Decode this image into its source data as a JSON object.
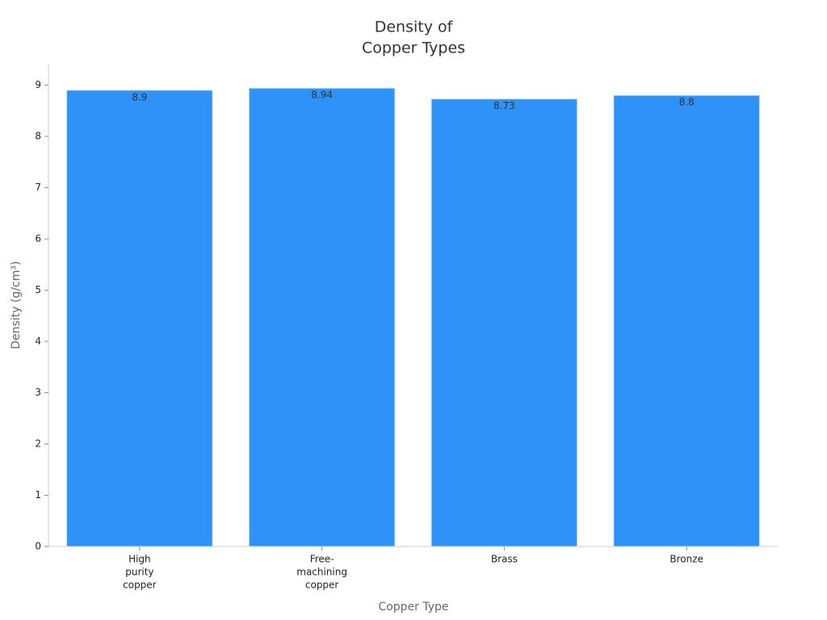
{
  "chart_data": {
    "type": "bar",
    "title": [
      "Density of",
      "Copper Types"
    ],
    "x_label": "Copper Type",
    "y_label": "Density (g/cm³)",
    "categories": [
      [
        "High",
        "purity",
        "copper"
      ],
      [
        "Free-",
        "machining",
        "copper"
      ],
      [
        "Brass"
      ],
      [
        "Bronze"
      ]
    ],
    "values": [
      8.9,
      8.94,
      8.73,
      8.8
    ],
    "color": "#2f92f8",
    "ylim": [
      0,
      9.4
    ],
    "yticks": [
      0,
      1,
      2,
      3,
      4,
      5,
      6,
      7,
      8,
      9
    ],
    "grid": false
  }
}
